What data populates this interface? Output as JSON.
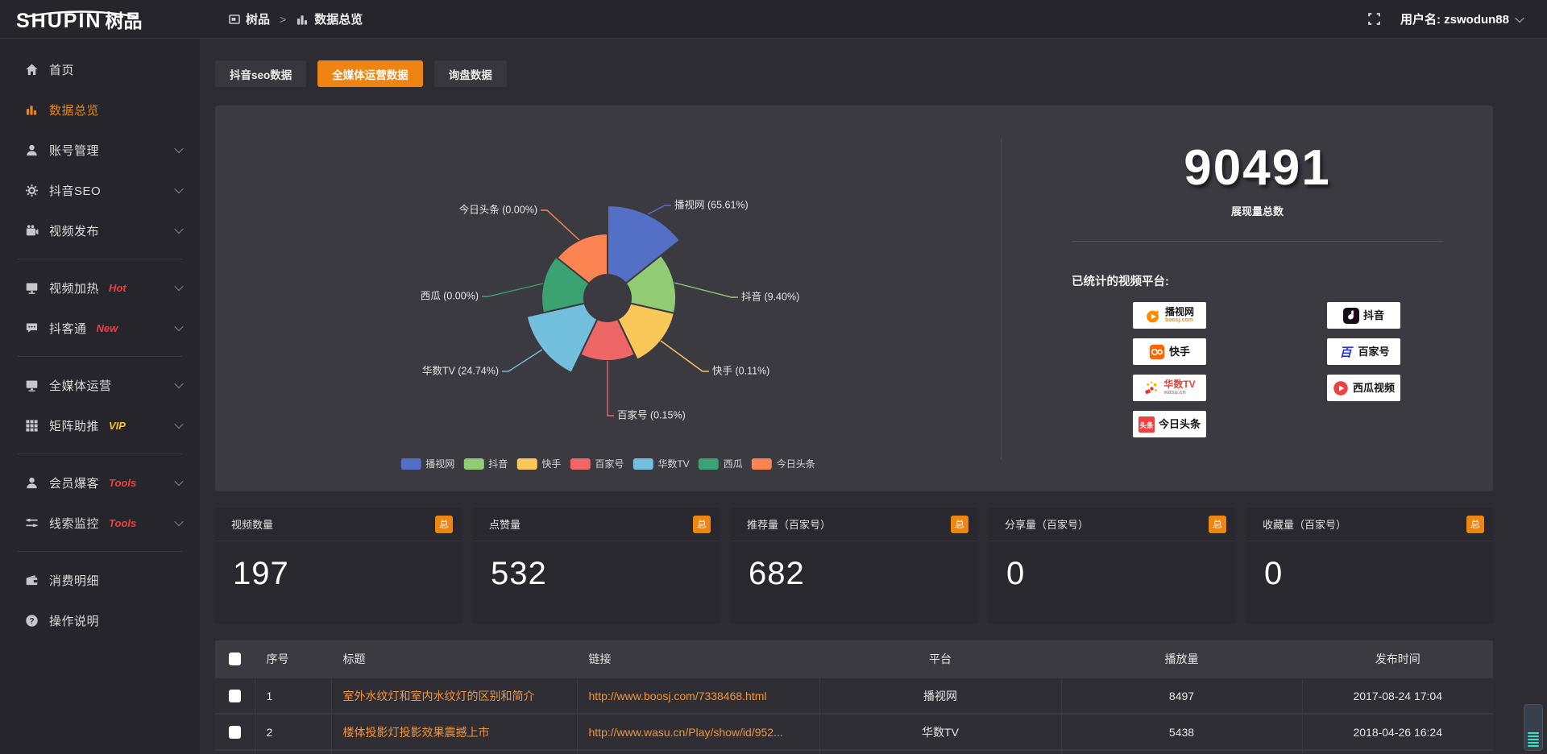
{
  "topbar": {
    "logo_main": "SHUPIN",
    "logo_suffix": "树品",
    "breadcrumb": [
      {
        "key": "shupin",
        "icon": "app-window-icon",
        "label": "树品"
      },
      {
        "key": "data-overview",
        "icon": "bar-chart-icon",
        "label": "数据总览"
      }
    ],
    "username": "用户名: zswodun88"
  },
  "sidebar": {
    "groups": [
      {
        "items": [
          {
            "key": "home",
            "icon": "home-icon",
            "label": "首页"
          },
          {
            "key": "data-overview",
            "icon": "bar-chart-icon",
            "label": "数据总览",
            "active": true
          },
          {
            "key": "account-management",
            "icon": "user-icon",
            "label": "账号管理",
            "expandable": true
          },
          {
            "key": "douyin-seo",
            "icon": "gear-icon",
            "label": "抖音SEO",
            "expandable": true
          },
          {
            "key": "video-publish",
            "icon": "video-publish-icon",
            "label": "视频发布",
            "expandable": true
          }
        ]
      },
      {
        "items": [
          {
            "key": "video-heating",
            "icon": "monitor-icon",
            "label": "视频加热",
            "badge": "Hot",
            "badge_color": "#f03e3e",
            "expandable": true
          },
          {
            "key": "douketong",
            "icon": "chat-icon",
            "label": "抖客通",
            "badge": "New",
            "badge_color": "#f03e3e",
            "expandable": true
          }
        ]
      },
      {
        "items": [
          {
            "key": "media-operation",
            "icon": "monitor-icon",
            "label": "全媒体运营",
            "expandable": true
          },
          {
            "key": "matrix-boost",
            "icon": "grid-icon",
            "label": "矩阵助推",
            "badge": "VIP",
            "badge_color": "#f7c324",
            "expandable": true
          }
        ]
      },
      {
        "items": [
          {
            "key": "member-leads",
            "icon": "user-icon",
            "label": "会员爆客",
            "badge": "Tools",
            "badge_color": "#f03e3e",
            "expandable": true
          },
          {
            "key": "clue-monitor",
            "icon": "sliders-icon",
            "label": "线索监控",
            "badge": "Tools",
            "badge_color": "#f03e3e",
            "expandable": true
          }
        ]
      },
      {
        "items": [
          {
            "key": "consumption-detail",
            "icon": "wallet-icon",
            "label": "消费明细"
          },
          {
            "key": "operation-guide",
            "icon": "question-icon",
            "label": "操作说明"
          }
        ]
      }
    ]
  },
  "tabs": {
    "items": [
      {
        "key": "douyin-seo-data",
        "label": "抖音seo数据"
      },
      {
        "key": "media-operation-data",
        "label": "全媒体运营数据"
      },
      {
        "key": "inquiry-data",
        "label": "询盘数据"
      }
    ],
    "active_index": 1
  },
  "chart_data": {
    "type": "pie",
    "rose": true,
    "inner_radius": 29,
    "legend_position": "bottom",
    "slices": [
      {
        "key": "boshiwang",
        "name": "播视网",
        "pct": 65.61,
        "label": "播视网 (65.61%)",
        "color": "#5470c6",
        "display_radius": 115,
        "label_line": [
          [
            537,
            135
          ],
          [
            558,
            124
          ],
          [
            566,
            124
          ]
        ],
        "label_pos": [
          570,
          124
        ],
        "anchor": "start"
      },
      {
        "key": "douyin",
        "name": "抖音",
        "pct": 9.4,
        "label": "抖音 (9.40%)",
        "color": "#91cc75",
        "display_radius": 85,
        "label_line": [
          [
            570,
            220
          ],
          [
            641,
            238
          ],
          [
            649,
            238
          ]
        ],
        "label_pos": [
          653,
          238
        ],
        "anchor": "start"
      },
      {
        "key": "kuaishou",
        "name": "快手",
        "pct": 0.11,
        "label": "快手 (0.11%)",
        "color": "#fac858",
        "display_radius": 85,
        "label_line": [
          [
            553,
            292
          ],
          [
            605,
            330
          ],
          [
            613,
            330
          ]
        ],
        "label_pos": [
          617,
          330
        ],
        "anchor": "start"
      },
      {
        "key": "baijiahao",
        "name": "百家号",
        "pct": 0.15,
        "label": "百家号 (0.15%)",
        "color": "#ee6666",
        "display_radius": 78,
        "label_line": [
          [
            487,
            317
          ],
          [
            487,
            385
          ],
          [
            495,
            385
          ]
        ],
        "label_pos": [
          499,
          385
        ],
        "anchor": "start"
      },
      {
        "key": "wasu-tv",
        "name": "华数TV",
        "pct": 24.74,
        "label": "华数TV (24.74%)",
        "color": "#73c0de",
        "display_radius": 103,
        "label_line": [
          [
            406,
            303
          ],
          [
            364,
            330
          ],
          [
            356,
            330
          ]
        ],
        "label_pos": [
          352,
          330
        ],
        "anchor": "end"
      },
      {
        "key": "xigua",
        "name": "西瓜",
        "pct": 0.0,
        "label": "西瓜 (0.00%)",
        "color": "#3ba272",
        "display_radius": 82,
        "label_line": [
          [
            407,
            221
          ],
          [
            339,
            237
          ],
          [
            331,
            237
          ]
        ],
        "label_pos": [
          327,
          237
        ],
        "anchor": "end"
      },
      {
        "key": "toutiao",
        "name": "今日头条",
        "pct": 0.0,
        "label": "今日头条 (0.00%)",
        "color": "#fc8452",
        "display_radius": 80,
        "label_line": [
          [
            452,
            167
          ],
          [
            412,
            130
          ],
          [
            404,
            130
          ]
        ],
        "label_pos": [
          400,
          130
        ],
        "anchor": "end"
      }
    ],
    "legend": [
      "播视网",
      "抖音",
      "快手",
      "百家号",
      "华数TV",
      "西瓜",
      "今日头条"
    ]
  },
  "summary": {
    "total_value": "90491",
    "total_label": "展现量总数",
    "platforms_title": "已统计的视频平台:"
  },
  "platforms": [
    {
      "key": "boshiwang",
      "icon": "boosj-icon",
      "name": "播视网",
      "sub": "boosj.com",
      "sub_color": "#ff8a00"
    },
    {
      "key": "kuaishou",
      "icon": "kuaishou-icon",
      "name": "快手"
    },
    {
      "key": "wasu-tv",
      "icon": "wasu-icon",
      "name": "华数TV",
      "name_color": "#e0453a",
      "sub": "wasu.cn",
      "sub_color": "#9a9a9a"
    },
    {
      "key": "toutiao",
      "icon": "toutiao-icon",
      "name": "今日头条"
    },
    {
      "key": "douyin",
      "icon": "douyin-icon",
      "name": "抖音"
    },
    {
      "key": "baijiahao",
      "icon": "baijiahao-icon",
      "name": "百家号"
    },
    {
      "key": "xigua",
      "icon": "xigua-icon",
      "name": "西瓜视频"
    }
  ],
  "stat_cards": [
    {
      "key": "video-count",
      "label": "视频数量",
      "badge": "总",
      "value": "197"
    },
    {
      "key": "like-count",
      "label": "点赞量",
      "badge": "总",
      "value": "532"
    },
    {
      "key": "recommend-count",
      "label": "推荐量（百家号）",
      "badge": "总",
      "value": "682"
    },
    {
      "key": "share-count",
      "label": "分享量（百家号）",
      "badge": "总",
      "value": "0"
    },
    {
      "key": "favorite-count",
      "label": "收藏量（百家号）",
      "badge": "总",
      "value": "0"
    }
  ],
  "table": {
    "headers": [
      "序号",
      "标题",
      "链接",
      "平台",
      "播放量",
      "发布时间"
    ],
    "rows": [
      {
        "seq": "1",
        "title": "室外水纹灯和室内水纹灯的区别和简介",
        "link": "http://www.boosj.com/7338468.html",
        "platform": "播视网",
        "plays": "8497",
        "time": "2017-08-24 17:04"
      },
      {
        "seq": "2",
        "title": "楼体投影灯投影效果震撼上市",
        "link": "http://www.wasu.cn/Play/show/id/952...",
        "platform": "华数TV",
        "plays": "5438",
        "time": "2018-04-26 16:24"
      }
    ]
  },
  "colors": {
    "accent": "#ee8512",
    "link": "#f0953f",
    "hot_badge": "#f03e3e",
    "vip_badge": "#f7c324",
    "panel_bg": "#3c3a41"
  }
}
